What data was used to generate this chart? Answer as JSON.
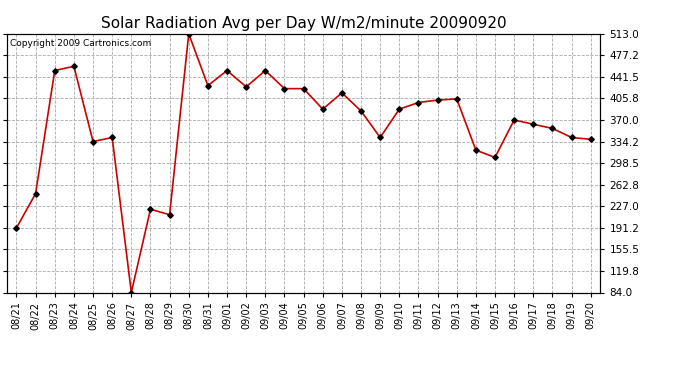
{
  "title": "Solar Radiation Avg per Day W/m2/minute 20090920",
  "copyright": "Copyright 2009 Cartronics.com",
  "labels": [
    "08/21",
    "08/22",
    "08/23",
    "08/24",
    "08/25",
    "08/26",
    "08/27",
    "08/28",
    "08/29",
    "08/30",
    "08/31",
    "09/01",
    "09/02",
    "09/03",
    "09/04",
    "09/05",
    "09/06",
    "09/07",
    "09/08",
    "09/09",
    "09/10",
    "09/11",
    "09/12",
    "09/13",
    "09/14",
    "09/15",
    "09/16",
    "09/17",
    "09/18",
    "09/19",
    "09/20"
  ],
  "values": [
    191.2,
    248.0,
    452.0,
    459.0,
    334.2,
    341.0,
    84.0,
    222.0,
    213.0,
    513.0,
    427.0,
    452.0,
    425.0,
    452.0,
    422.0,
    422.0,
    388.0,
    415.0,
    385.0,
    341.0,
    388.0,
    399.0,
    403.0,
    405.0,
    320.0,
    308.0,
    370.0,
    363.0,
    356.0,
    341.0,
    338.0
  ],
  "y_ticks": [
    84.0,
    119.8,
    155.5,
    191.2,
    227.0,
    262.8,
    298.5,
    334.2,
    370.0,
    405.8,
    441.5,
    477.2,
    513.0
  ],
  "line_color": "#cc0000",
  "marker_color": "#000000",
  "bg_color": "#ffffff",
  "grid_color": "#aaaaaa",
  "title_fontsize": 11,
  "copyright_fontsize": 6.5,
  "tick_fontsize": 7,
  "ytick_fontsize": 7.5,
  "ymin": 84.0,
  "ymax": 513.0
}
